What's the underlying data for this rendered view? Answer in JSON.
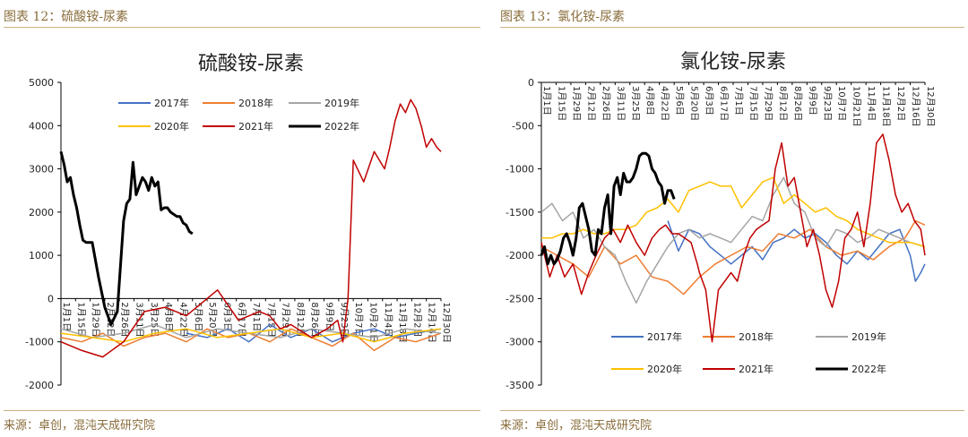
{
  "left": {
    "caption": "图表 12：硫酸铵-尿素",
    "source": "来源：卓创，混沌天成研究院",
    "chart_data": {
      "type": "line",
      "title": "硫酸铵-尿素",
      "ylim": [
        -2000,
        5000
      ],
      "yticks": [
        5000,
        4000,
        3000,
        2000,
        1000,
        0,
        -1000,
        -2000
      ],
      "x_tick_labels": [
        "1月1日",
        "1月15日",
        "1月29日",
        "2月12日",
        "2月26日",
        "3月11日",
        "3月25日",
        "4月8日",
        "4月22日",
        "5月6日",
        "5月20日",
        "6月3日",
        "6月17日",
        "7月1日",
        "7月15日",
        "7月29日",
        "8月12日",
        "8月26日",
        "9月9日",
        "9月23日",
        "10月7日",
        "10月21日",
        "11月4日",
        "11月18日",
        "12月2日",
        "12月16日",
        "12月30日"
      ],
      "x_range": [
        0,
        364
      ],
      "grid": false,
      "legend_position": "top-left",
      "series": [
        {
          "name": "2017年",
          "color": "#4472c4",
          "x": [
            120,
            140,
            160,
            180,
            200,
            220,
            240,
            260,
            280,
            300,
            320,
            340,
            364
          ],
          "values": [
            -800,
            -900,
            -700,
            -1000,
            -600,
            -900,
            -700,
            -1000,
            -800,
            -700,
            -900,
            -800,
            -700
          ]
        },
        {
          "name": "2018年",
          "color": "#ed7d31",
          "x": [
            0,
            20,
            40,
            60,
            80,
            100,
            120,
            140,
            160,
            180,
            200,
            220,
            240,
            260,
            280,
            300,
            320,
            340,
            364
          ],
          "values": [
            -900,
            -1000,
            -800,
            -1100,
            -900,
            -800,
            -1000,
            -700,
            -900,
            -800,
            -1000,
            -700,
            -900,
            -1100,
            -800,
            -1200,
            -900,
            -1000,
            -800
          ]
        },
        {
          "name": "2019年",
          "color": "#a5a5a5",
          "x": [
            0,
            30,
            60,
            90,
            120,
            150,
            180,
            210,
            240,
            270,
            300,
            330,
            364
          ],
          "values": [
            -700,
            -900,
            -800,
            -600,
            -900,
            -700,
            -800,
            -900,
            -700,
            -800,
            -900,
            -700,
            -800
          ]
        },
        {
          "name": "2020年",
          "color": "#ffc000",
          "x": [
            0,
            30,
            60,
            90,
            120,
            150,
            180,
            210,
            240,
            270,
            300,
            330,
            364
          ],
          "values": [
            -800,
            -900,
            -1000,
            -800,
            -700,
            -900,
            -800,
            -700,
            -900,
            -800,
            -1000,
            -800,
            -700
          ]
        },
        {
          "name": "2021年",
          "color": "#c00000",
          "x": [
            0,
            20,
            40,
            60,
            80,
            100,
            120,
            150,
            170,
            190,
            200,
            210,
            220,
            240,
            255,
            265,
            270,
            275,
            280,
            290,
            300,
            310,
            315,
            320,
            325,
            330,
            335,
            340,
            345,
            350,
            355,
            360,
            364
          ],
          "values": [
            -1000,
            -1200,
            -1350,
            -1000,
            -300,
            -200,
            -400,
            200,
            -500,
            -300,
            -400,
            -700,
            -600,
            -900,
            -700,
            -500,
            -1000,
            0,
            3200,
            2700,
            3400,
            3000,
            3500,
            4100,
            4500,
            4300,
            4600,
            4400,
            4000,
            3500,
            3700,
            3500,
            3400
          ]
        },
        {
          "name": "2022年",
          "color": "#000000",
          "width": 3,
          "x": [
            0,
            3,
            6,
            9,
            12,
            15,
            18,
            21,
            24,
            30,
            36,
            42,
            48,
            54,
            60,
            63,
            66,
            69,
            72,
            75,
            78,
            81,
            84,
            87,
            90,
            93,
            96,
            99,
            102,
            105,
            108,
            111,
            114,
            117,
            120,
            123,
            126
          ],
          "values": [
            3400,
            3100,
            2700,
            2800,
            2400,
            2100,
            1700,
            1350,
            1300,
            1300,
            500,
            -200,
            -600,
            -300,
            1800,
            2200,
            2300,
            3150,
            2400,
            2600,
            2800,
            2700,
            2500,
            2800,
            2600,
            2700,
            2050,
            2100,
            2100,
            2000,
            1950,
            1900,
            1900,
            1750,
            1700,
            1550,
            1500
          ]
        }
      ]
    }
  },
  "right": {
    "caption": "图表 13：氯化铵-尿素",
    "source": "来源：卓创，混沌天成研究院",
    "chart_data": {
      "type": "line",
      "title": "氯化铵-尿素",
      "ylim": [
        -3500,
        0
      ],
      "yticks": [
        0,
        -500,
        -1000,
        -1500,
        -2000,
        -2500,
        -3000,
        -3500
      ],
      "x_tick_labels": [
        "1月1日",
        "1月15日",
        "1月29日",
        "2月12日",
        "2月26日",
        "3月11日",
        "3月25日",
        "4月8日",
        "4月22日",
        "5月6日",
        "5月20日",
        "6月3日",
        "6月17日",
        "7月1日",
        "7月15日",
        "7月29日",
        "8月12日",
        "8月26日",
        "9月9日",
        "9月23日",
        "10月7日",
        "10月21日",
        "11月4日",
        "11月18日",
        "12月2日",
        "12月16日",
        "12月30日"
      ],
      "x_range": [
        0,
        364
      ],
      "grid": false,
      "legend_position": "bottom",
      "series": [
        {
          "name": "2017年",
          "color": "#4472c4",
          "x": [
            120,
            130,
            140,
            150,
            160,
            170,
            180,
            190,
            200,
            210,
            220,
            230,
            240,
            250,
            260,
            270,
            280,
            290,
            300,
            310,
            320,
            330,
            340,
            350,
            355,
            360,
            364
          ],
          "values": [
            -1600,
            -1950,
            -1700,
            -1750,
            -1900,
            -2000,
            -2100,
            -2000,
            -1900,
            -2050,
            -1850,
            -1800,
            -1700,
            -1800,
            -1750,
            -1850,
            -2000,
            -2100,
            -1950,
            -2050,
            -1900,
            -1750,
            -1700,
            -2000,
            -2300,
            -2200,
            -2100
          ]
        },
        {
          "name": "2018年",
          "color": "#ed7d31",
          "x": [
            0,
            15,
            30,
            45,
            60,
            75,
            90,
            105,
            120,
            135,
            150,
            165,
            180,
            195,
            210,
            225,
            240,
            255,
            270,
            285,
            300,
            315,
            330,
            345,
            355,
            364
          ],
          "values": [
            -1900,
            -2000,
            -2100,
            -2250,
            -1900,
            -2100,
            -2000,
            -2250,
            -2300,
            -2450,
            -2250,
            -2100,
            -2000,
            -1900,
            -1950,
            -1750,
            -1800,
            -1700,
            -1900,
            -2000,
            -1950,
            -2050,
            -1900,
            -1800,
            -1600,
            -1650
          ]
        },
        {
          "name": "2019年",
          "color": "#a5a5a5",
          "x": [
            0,
            10,
            20,
            30,
            40,
            50,
            60,
            70,
            80,
            90,
            100,
            110,
            120,
            130,
            140,
            150,
            160,
            170,
            180,
            190,
            200,
            210,
            220,
            230,
            240,
            250,
            260,
            270,
            280,
            290,
            300,
            310,
            320,
            330,
            340,
            350,
            364
          ],
          "values": [
            -1500,
            -1400,
            -1600,
            -1500,
            -1800,
            -1700,
            -1900,
            -2000,
            -2300,
            -2550,
            -2300,
            -2100,
            -1900,
            -1750,
            -1700,
            -1800,
            -1750,
            -1800,
            -1850,
            -1700,
            -1550,
            -1600,
            -1300,
            -1100,
            -1400,
            -1500,
            -1800,
            -1900,
            -1700,
            -1750,
            -1850,
            -1800,
            -1700,
            -1750,
            -1800,
            -1850,
            -1900
          ]
        },
        {
          "name": "2020年",
          "color": "#ffc000",
          "x": [
            0,
            10,
            20,
            30,
            40,
            50,
            60,
            70,
            80,
            90,
            100,
            110,
            120,
            130,
            140,
            150,
            160,
            170,
            180,
            190,
            200,
            210,
            220,
            230,
            240,
            250,
            260,
            270,
            280,
            290,
            300,
            310,
            320,
            330,
            340,
            350,
            364
          ],
          "values": [
            -1800,
            -1800,
            -1750,
            -1750,
            -1700,
            -1750,
            -1750,
            -1700,
            -1700,
            -1650,
            -1500,
            -1450,
            -1350,
            -1500,
            -1250,
            -1200,
            -1150,
            -1200,
            -1200,
            -1450,
            -1300,
            -1150,
            -1100,
            -1400,
            -1300,
            -1400,
            -1500,
            -1450,
            -1550,
            -1600,
            -1700,
            -1750,
            -1800,
            -1850,
            -1850,
            -1850,
            -1900
          ]
        },
        {
          "name": "2021年",
          "color": "#c00000",
          "x": [
            0,
            8,
            15,
            22,
            30,
            38,
            45,
            52,
            60,
            68,
            75,
            82,
            90,
            98,
            105,
            112,
            118,
            124,
            130,
            136,
            142,
            148,
            150,
            156,
            162,
            168,
            174,
            180,
            186,
            192,
            198,
            204,
            210,
            216,
            222,
            228,
            234,
            240,
            246,
            252,
            258,
            264,
            270,
            276,
            282,
            288,
            294,
            300,
            306,
            312,
            318,
            324,
            330,
            336,
            342,
            348,
            354,
            360,
            364
          ],
          "values": [
            -1850,
            -2250,
            -2000,
            -2250,
            -2100,
            -2450,
            -2200,
            -2000,
            -1800,
            -1700,
            -1850,
            -1650,
            -1850,
            -2000,
            -1800,
            -1700,
            -1650,
            -1750,
            -1750,
            -1800,
            -1850,
            -2100,
            -2200,
            -2400,
            -3000,
            -2400,
            -2300,
            -2200,
            -2300,
            -2000,
            -1800,
            -1700,
            -1650,
            -1600,
            -1000,
            -700,
            -1200,
            -1100,
            -1500,
            -1900,
            -1700,
            -2000,
            -2400,
            -2600,
            -2300,
            -1800,
            -1700,
            -1500,
            -1900,
            -1400,
            -700,
            -600,
            -900,
            -1300,
            -1500,
            -1400,
            -1600,
            -1700,
            -2000
          ]
        },
        {
          "name": "2022年",
          "color": "#000000",
          "width": 3,
          "x": [
            0,
            3,
            6,
            9,
            12,
            15,
            18,
            21,
            24,
            27,
            30,
            33,
            36,
            39,
            42,
            45,
            48,
            51,
            54,
            57,
            60,
            63,
            66,
            69,
            72,
            75,
            78,
            81,
            84,
            87,
            90,
            93,
            96,
            99,
            102,
            105,
            108,
            111,
            114,
            117,
            120,
            123,
            126
          ],
          "values": [
            -2000,
            -1900,
            -2100,
            -2000,
            -2100,
            -2050,
            -1950,
            -1800,
            -1750,
            -1850,
            -2000,
            -1800,
            -1450,
            -1400,
            -1550,
            -1700,
            -1950,
            -2000,
            -1700,
            -1750,
            -1450,
            -1300,
            -1750,
            -1200,
            -1100,
            -1300,
            -1050,
            -1150,
            -1150,
            -1100,
            -1000,
            -850,
            -820,
            -820,
            -850,
            -1000,
            -1050,
            -1150,
            -1200,
            -1400,
            -1250,
            -1250,
            -1350
          ]
        }
      ]
    }
  }
}
